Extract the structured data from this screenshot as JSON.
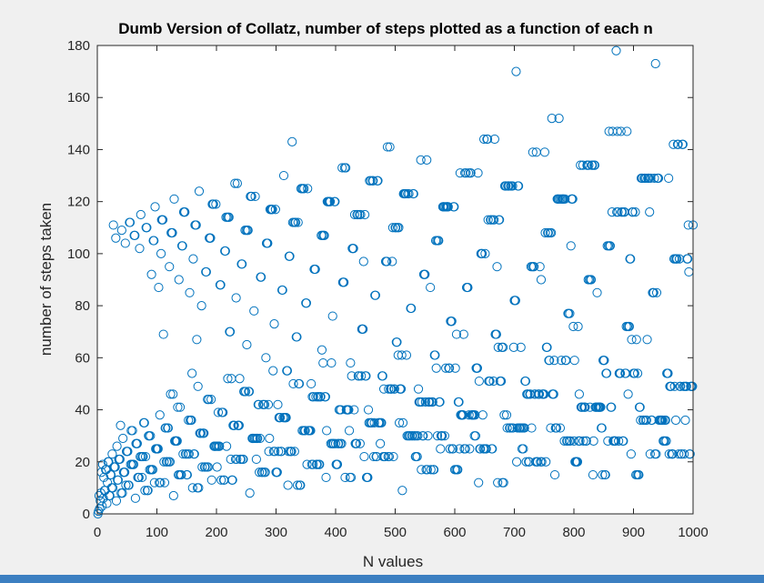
{
  "chart_data": {
    "type": "scatter",
    "title": "Dumb Version of Collatz, number of steps plotted as a function of each n",
    "xlabel": "N values",
    "ylabel": "number of steps taken",
    "xlim": [
      0,
      1000
    ],
    "ylim": [
      0,
      180
    ],
    "x_ticks": [
      0,
      100,
      200,
      300,
      400,
      500,
      600,
      700,
      800,
      900,
      1000
    ],
    "y_ticks": [
      0,
      20,
      40,
      60,
      80,
      100,
      120,
      140,
      160,
      180
    ],
    "x_tick_labels": [
      "0",
      "100",
      "200",
      "300",
      "400",
      "500",
      "600",
      "700",
      "800",
      "900",
      "1000"
    ],
    "y_tick_labels": [
      "0",
      "20",
      "40",
      "60",
      "80",
      "100",
      "120",
      "140",
      "160",
      "180"
    ],
    "marker": "open-circle",
    "marker_color": "#0072bd",
    "grid": false,
    "legend": "none",
    "n_range": [
      1,
      1000
    ],
    "series_rule": "Collatz stopping time of n (steps to reach 1) for each integer n from 1 to 1000"
  }
}
